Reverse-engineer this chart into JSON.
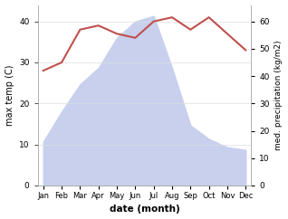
{
  "months": [
    "Jan",
    "Feb",
    "Mar",
    "Apr",
    "May",
    "Jun",
    "Jul",
    "Aug",
    "Sep",
    "Oct",
    "Nov",
    "Dec"
  ],
  "month_x": [
    0,
    1,
    2,
    3,
    4,
    5,
    6,
    7,
    8,
    9,
    10,
    11
  ],
  "temp": [
    28,
    30,
    38,
    39,
    37,
    36,
    40,
    41,
    38,
    41,
    37,
    33
  ],
  "precip": [
    16,
    27,
    37,
    43,
    54,
    60,
    62,
    43,
    22,
    17,
    14,
    13
  ],
  "temp_color": "#c0504d",
  "precip_fill_color": "#c8d0ee",
  "temp_ylim": [
    0,
    44
  ],
  "precip_ylim": [
    0,
    66
  ],
  "temp_yticks": [
    0,
    10,
    20,
    30,
    40
  ],
  "precip_yticks": [
    0,
    10,
    20,
    30,
    40,
    50,
    60
  ],
  "ylabel_left": "max temp (C)",
  "ylabel_right": "med. precipitation (kg/m2)",
  "xlabel": "date (month)",
  "background_color": "#ffffff",
  "line_width": 1.5
}
